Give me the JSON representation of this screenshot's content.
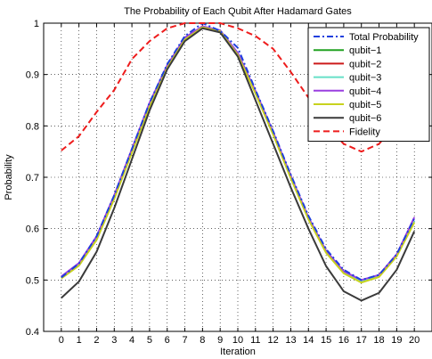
{
  "chart_data": {
    "type": "line",
    "title": "The Probability of Each Qubit After Hadamard Gates",
    "xlabel": "Iteration",
    "ylabel": "Probability",
    "xlim": [
      -1,
      21
    ],
    "ylim": [
      0.4,
      1.0
    ],
    "grid": true,
    "legend_position": "top-right",
    "x": [
      0,
      1,
      2,
      3,
      4,
      5,
      6,
      7,
      8,
      9,
      10,
      11,
      12,
      13,
      14,
      15,
      16,
      17,
      18,
      19,
      20
    ],
    "x_ticks": [
      "0",
      "1",
      "2",
      "3",
      "4",
      "5",
      "6",
      "7",
      "8",
      "9",
      "10",
      "11",
      "12",
      "13",
      "14",
      "15",
      "16",
      "17",
      "18",
      "19",
      "20"
    ],
    "y_ticks": [
      "0.4",
      "0.5",
      "0.6",
      "0.7",
      "0.8",
      "0.9",
      "1"
    ],
    "y_tick_values": [
      0.4,
      0.5,
      0.6,
      0.7,
      0.8,
      0.9,
      1.0
    ],
    "series": [
      {
        "name": "Total Probability",
        "color": "#1f3fdd",
        "dash": "dashdot",
        "width": 2,
        "values": [
          0.505,
          0.532,
          0.585,
          0.665,
          0.755,
          0.845,
          0.92,
          0.975,
          1.0,
          0.985,
          0.952,
          0.87,
          0.79,
          0.705,
          0.625,
          0.56,
          0.52,
          0.5,
          0.51,
          0.55,
          0.62
        ]
      },
      {
        "name": "qubit−1",
        "color": "#22a222",
        "dash": "solid",
        "width": 2,
        "values": [
          0.505,
          0.53,
          0.58,
          0.66,
          0.75,
          0.84,
          0.915,
          0.97,
          0.993,
          0.985,
          0.94,
          0.865,
          0.785,
          0.7,
          0.62,
          0.555,
          0.515,
          0.497,
          0.508,
          0.548,
          0.615
        ]
      },
      {
        "name": "qubit−2",
        "color": "#cc1a1a",
        "dash": "solid",
        "width": 2,
        "values": [
          0.505,
          0.53,
          0.58,
          0.66,
          0.75,
          0.84,
          0.915,
          0.97,
          0.993,
          0.985,
          0.94,
          0.865,
          0.785,
          0.7,
          0.62,
          0.555,
          0.515,
          0.497,
          0.508,
          0.548,
          0.615
        ]
      },
      {
        "name": "qubit−3",
        "color": "#66e0c8",
        "dash": "solid",
        "width": 2,
        "values": [
          0.505,
          0.53,
          0.58,
          0.66,
          0.75,
          0.84,
          0.915,
          0.97,
          0.993,
          0.985,
          0.94,
          0.865,
          0.785,
          0.7,
          0.62,
          0.555,
          0.515,
          0.497,
          0.508,
          0.548,
          0.615
        ]
      },
      {
        "name": "qubit−4",
        "color": "#9a3fe0",
        "dash": "solid",
        "width": 2,
        "values": [
          0.507,
          0.533,
          0.585,
          0.665,
          0.755,
          0.845,
          0.918,
          0.972,
          0.994,
          0.986,
          0.942,
          0.868,
          0.788,
          0.703,
          0.622,
          0.557,
          0.517,
          0.5,
          0.51,
          0.55,
          0.622
        ]
      },
      {
        "name": "qubit−5",
        "color": "#c8d21e",
        "dash": "solid",
        "width": 2,
        "values": [
          0.503,
          0.528,
          0.578,
          0.658,
          0.748,
          0.838,
          0.913,
          0.968,
          0.992,
          0.984,
          0.938,
          0.863,
          0.783,
          0.698,
          0.618,
          0.553,
          0.513,
          0.495,
          0.506,
          0.546,
          0.612
        ]
      },
      {
        "name": "qubit−6",
        "color": "#3a3a3a",
        "dash": "solid",
        "width": 2,
        "values": [
          0.465,
          0.497,
          0.555,
          0.64,
          0.735,
          0.83,
          0.91,
          0.965,
          0.99,
          0.982,
          0.935,
          0.85,
          0.765,
          0.68,
          0.6,
          0.527,
          0.478,
          0.46,
          0.475,
          0.52,
          0.595
        ]
      },
      {
        "name": "Fidelity",
        "color": "#ee1c1c",
        "dash": "dashed",
        "width": 2,
        "values": [
          0.752,
          0.78,
          0.827,
          0.87,
          0.93,
          0.965,
          0.99,
          1.0,
          1.0,
          1.0,
          0.99,
          0.975,
          0.95,
          0.905,
          0.855,
          0.8,
          0.765,
          0.75,
          0.765,
          0.805,
          0.85
        ]
      }
    ]
  }
}
